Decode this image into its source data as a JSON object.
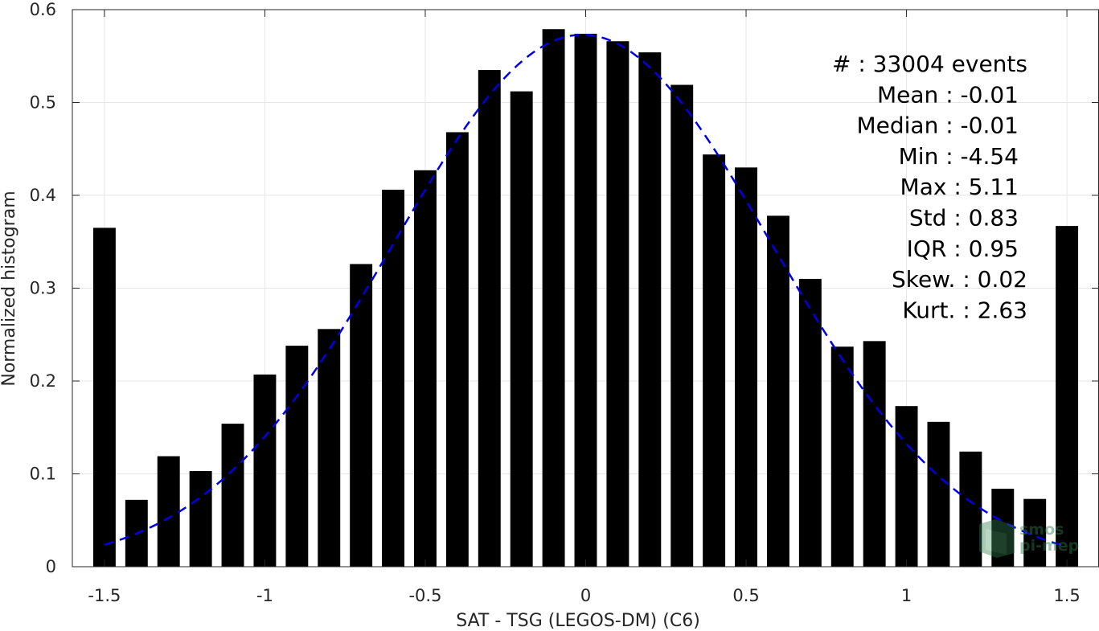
{
  "chart_data": {
    "type": "bar",
    "xlabel": "SAT - TSG (LEGOS-DM) (C6)",
    "ylabel": "Normalized histogram",
    "xlim": [
      -1.6,
      1.6
    ],
    "ylim": [
      0,
      0.6
    ],
    "xticks": [
      -1.5,
      -1,
      -0.5,
      0,
      0.5,
      1,
      1.5
    ],
    "xtick_labels": [
      "-1.5",
      "-1",
      "-0.5",
      "0",
      "0.5",
      "1",
      "1.5"
    ],
    "yticks": [
      0,
      0.1,
      0.2,
      0.3,
      0.4,
      0.5,
      0.6
    ],
    "ytick_labels": [
      "0",
      "0.1",
      "0.2",
      "0.3",
      "0.4",
      "0.5",
      "0.6"
    ],
    "grid": true,
    "bar_color": "#000000",
    "bar_width": 0.07,
    "series": [
      {
        "type": "bar",
        "x": [
          -1.5,
          -1.4,
          -1.3,
          -1.2,
          -1.1,
          -1.0,
          -0.9,
          -0.8,
          -0.7,
          -0.6,
          -0.5,
          -0.4,
          -0.3,
          -0.2,
          -0.1,
          0.0,
          0.1,
          0.2,
          0.3,
          0.4,
          0.5,
          0.6,
          0.7,
          0.8,
          0.9,
          1.0,
          1.1,
          1.2,
          1.3,
          1.4,
          1.5
        ],
        "values": [
          0.365,
          0.072,
          0.119,
          0.103,
          0.154,
          0.207,
          0.238,
          0.256,
          0.326,
          0.406,
          0.427,
          0.468,
          0.535,
          0.512,
          0.579,
          0.574,
          0.566,
          0.554,
          0.519,
          0.444,
          0.43,
          0.378,
          0.31,
          0.237,
          0.243,
          0.173,
          0.156,
          0.124,
          0.084,
          0.073,
          0.367
        ]
      },
      {
        "type": "line",
        "style": "dashed",
        "color": "#0000e6",
        "gaussian": {
          "amplitude": 0.573,
          "mean": -0.01,
          "std": 0.59
        },
        "x_range": [
          -1.5,
          1.5
        ]
      }
    ],
    "annotations": [
      "#  : 33004 events",
      "Mean : -0.01",
      "Median : -0.01",
      "Min : -4.54",
      "Max : 5.11",
      "Std : 0.83",
      "IQR : 0.95",
      "Skew. : 0.02",
      "Kurt. : 2.63"
    ]
  },
  "logo": {
    "line1": "smos",
    "line2": "pi-mep"
  }
}
